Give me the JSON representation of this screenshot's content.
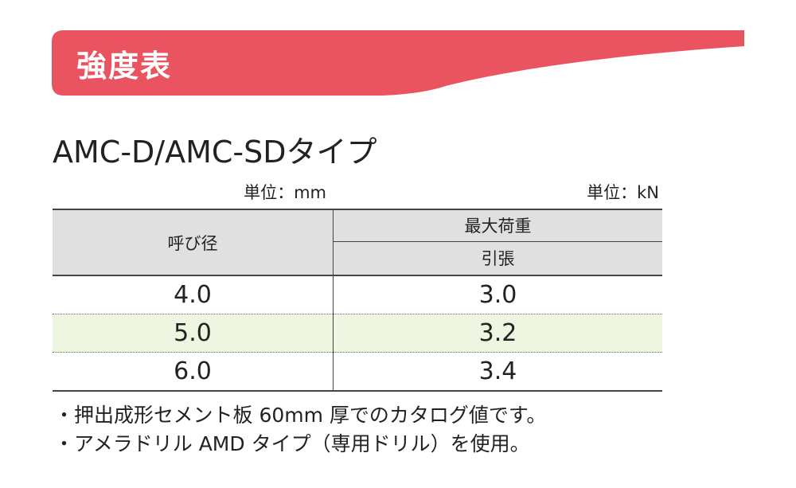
{
  "header": {
    "title": "強度表"
  },
  "subtitle": "AMC-D/AMC-SDタイプ",
  "units": {
    "left": "単位：mm",
    "right": "単位：kN"
  },
  "table": {
    "headers": {
      "nominal": "呼び径",
      "max_load": "最大荷重",
      "tension": "引張"
    },
    "rows": [
      [
        "4.0",
        "3.0"
      ],
      [
        "5.0",
        "3.2"
      ],
      [
        "6.0",
        "3.4"
      ]
    ]
  },
  "notes": [
    "・押出成形セメント板 60mm 厚でのカタログ値です。",
    "・アメラドリル AMD タイプ（専用ドリル）を使用。"
  ]
}
